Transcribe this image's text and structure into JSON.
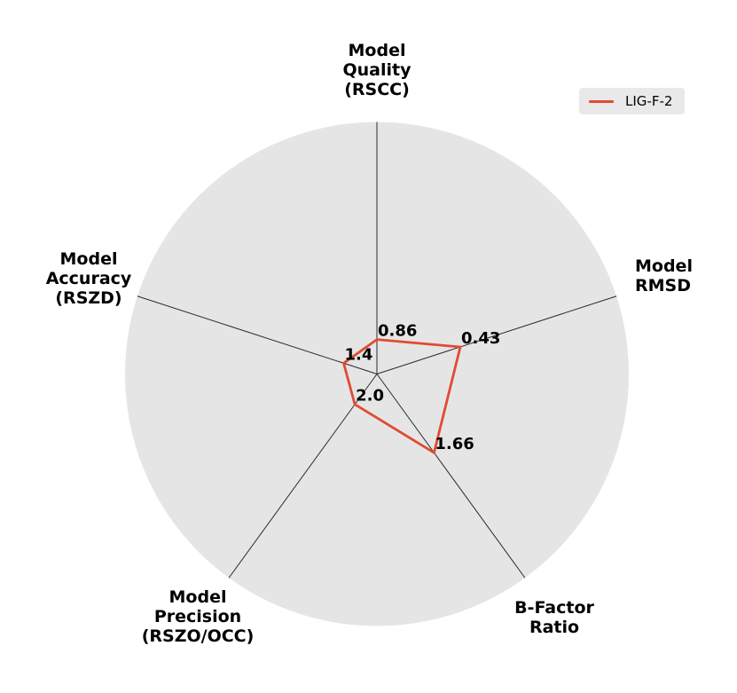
{
  "chart_data": {
    "type": "radar",
    "title": "",
    "axes": [
      {
        "id": "model-quality-rscc",
        "label": "Model\nQuality\n(RSCC)",
        "angle_deg": 90
      },
      {
        "id": "model-rmsd",
        "label": "Model\nRMSD",
        "angle_deg": 18
      },
      {
        "id": "b-factor-ratio",
        "label": "B-Factor\nRatio",
        "angle_deg": -54
      },
      {
        "id": "model-precision-rszo",
        "label": "Model\nPrecision\n(RSZO/OCC)",
        "angle_deg": -126
      },
      {
        "id": "model-accuracy-rszd",
        "label": "Model\nAccuracy\n(RSZD)",
        "angle_deg": -198
      }
    ],
    "series": [
      {
        "name": "LIG-F-2",
        "color": "#E24A33",
        "values": [
          0.86,
          0.43,
          1.66,
          2.0,
          1.4
        ],
        "value_labels": [
          "0.86",
          "0.43",
          "1.66",
          "2.0",
          "1.4"
        ],
        "radius_fractions": [
          0.137,
          0.348,
          0.386,
          0.149,
          0.139
        ]
      }
    ],
    "legend": {
      "label": "LIG-F-2",
      "position": "upper right"
    },
    "style": {
      "circle_fill": "#e5e5e5",
      "spoke_color": "#2b2b2b",
      "line_width": 2.8,
      "value_label_color": "#000000"
    }
  }
}
